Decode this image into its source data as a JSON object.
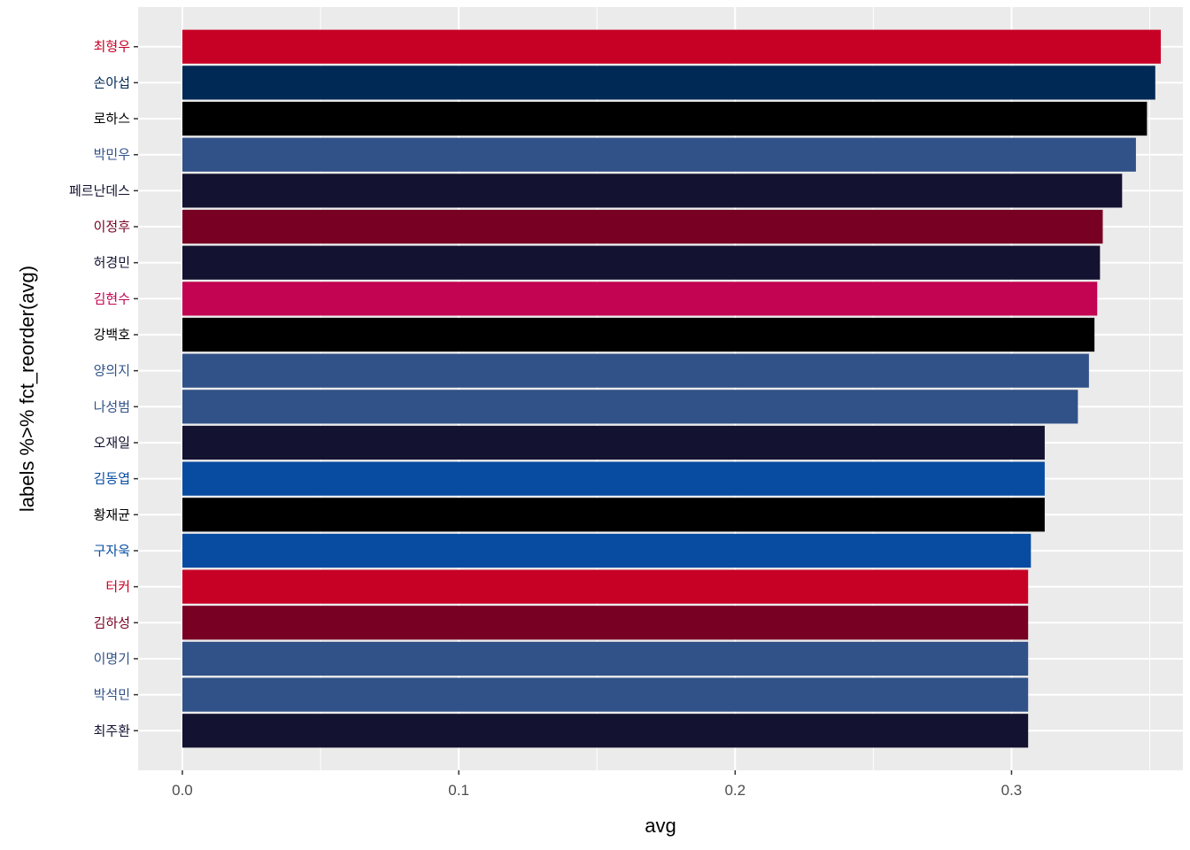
{
  "chart_data": {
    "type": "bar",
    "orientation": "horizontal",
    "xlabel": "avg",
    "ylabel": "labels %>% fct_reorder(avg)",
    "xlim": [
      -0.016,
      0.362
    ],
    "x_ticks": [
      "0.0",
      "0.1",
      "0.2",
      "0.3"
    ],
    "x_tick_values": [
      0.0,
      0.1,
      0.2,
      0.3
    ],
    "grid": true,
    "legend": "none",
    "panel_background": "#EBEBEB",
    "categories": [
      "최형우",
      "손아섭",
      "로하스",
      "박민우",
      "페르난데스",
      "이정후",
      "허경민",
      "김현수",
      "강백호",
      "양의지",
      "나성범",
      "오재일",
      "김동엽",
      "황재균",
      "구자욱",
      "터커",
      "김하성",
      "이명기",
      "박석민",
      "최주환"
    ],
    "values": [
      0.354,
      0.352,
      0.349,
      0.345,
      0.34,
      0.333,
      0.332,
      0.331,
      0.33,
      0.328,
      0.324,
      0.312,
      0.312,
      0.312,
      0.307,
      0.306,
      0.306,
      0.306,
      0.306,
      0.306
    ],
    "bar_colors": [
      "#C70125",
      "#002955",
      "#000000",
      "#315288",
      "#131230",
      "#770023",
      "#131230",
      "#C30452",
      "#000000",
      "#315288",
      "#315288",
      "#131230",
      "#074CA1",
      "#000000",
      "#074CA1",
      "#C70125",
      "#770023",
      "#315288",
      "#315288",
      "#131230"
    ],
    "label_colors": [
      "#C70125",
      "#002955",
      "#000000",
      "#315288",
      "#131230",
      "#770023",
      "#131230",
      "#C30452",
      "#000000",
      "#315288",
      "#315288",
      "#131230",
      "#074CA1",
      "#000000",
      "#074CA1",
      "#C70125",
      "#770023",
      "#315288",
      "#315288",
      "#131230"
    ]
  }
}
